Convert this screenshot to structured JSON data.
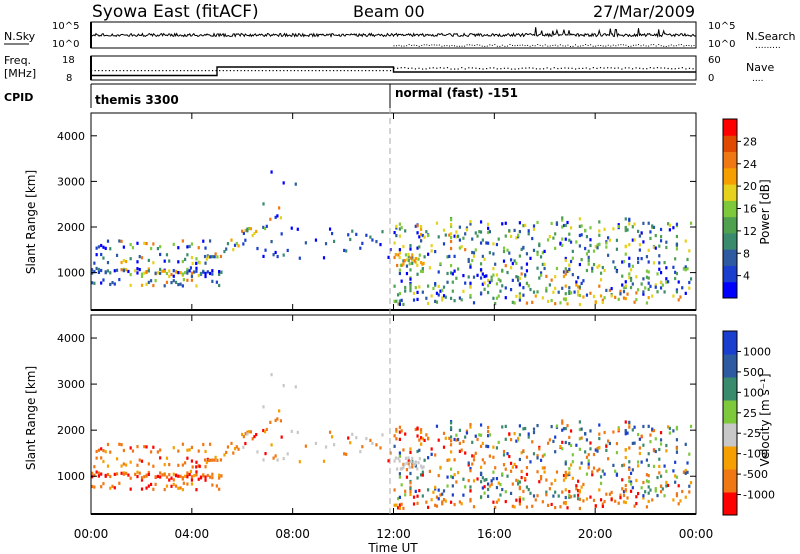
{
  "header": {
    "station": "Syowa East (fitACF)",
    "beam": "Beam 00",
    "date": "27/Mar/2009"
  },
  "noise_panel": {
    "left_label": "N.Sky",
    "right_label": "N.Search",
    "left_ticks": [
      "10^5",
      "10^0"
    ],
    "right_ticks": [
      "10^5",
      "10^0"
    ]
  },
  "freq_panel": {
    "left_label_line1": "Freq.",
    "left_label_line2": "[MHz]",
    "right_label": "Nave",
    "left_ticks": [
      "18",
      "8"
    ],
    "right_ticks": [
      "60",
      "0"
    ]
  },
  "cpid": {
    "label": "CPID",
    "segments": [
      {
        "start_hour": 0,
        "text": "themis 3300"
      },
      {
        "start_hour": 12,
        "text": "normal (fast) -151"
      }
    ]
  },
  "colors": {
    "power_bar": [
      "#0000ff",
      "#1a3fcf",
      "#2d5aa0",
      "#3a8a6e",
      "#4fa04f",
      "#7ec83c",
      "#e6d21e",
      "#f5a000",
      "#f07814",
      "#e04a00",
      "#ff0000"
    ],
    "velocity_bar": [
      "#ff0000",
      "#f07814",
      "#f5a000",
      "#c8c8c8",
      "#7ec83c",
      "#3a8a6e",
      "#2d5aa0",
      "#1a3fcf"
    ]
  },
  "chart_data": [
    {
      "type": "heatmap",
      "panel": "power",
      "ylabel": "Slant Range [km]",
      "ylim": [
        180,
        4500
      ],
      "xlim": [
        0,
        24
      ],
      "yticks": [
        "1000",
        "2000",
        "3000",
        "4000"
      ],
      "colorbar_label": "Power [dB]",
      "colorbar_ticks": [
        "4",
        "8",
        "12",
        "16",
        "20",
        "24",
        "28"
      ],
      "grid": false
    },
    {
      "type": "heatmap",
      "panel": "velocity",
      "ylabel": "Slant Range [km]",
      "ylim": [
        180,
        4500
      ],
      "xlim": [
        0,
        24
      ],
      "yticks": [
        "1000",
        "2000",
        "3000",
        "4000"
      ],
      "colorbar_label": "Velocity [m s⁻¹]",
      "colorbar_ticks": [
        "1000",
        "500",
        "100",
        "25",
        "-25",
        "-100",
        "-500",
        "-1000"
      ],
      "grid": false
    }
  ],
  "x_axis": {
    "label": "Time UT",
    "ticks": [
      "00:00",
      "04:00",
      "08:00",
      "12:00",
      "16:00",
      "20:00",
      "00:00"
    ]
  }
}
